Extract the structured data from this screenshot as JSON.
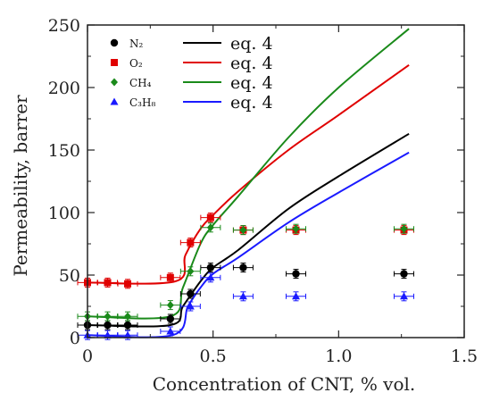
{
  "chart_data": {
    "type": "scatter",
    "xlabel": "Concentration of CNT, % vol.",
    "ylabel": "Permeability, barrer",
    "xlim": [
      0,
      1.5
    ],
    "ylim": [
      0,
      250
    ],
    "xticks": [
      "0",
      "0.5",
      "1.0",
      "1.5"
    ],
    "yticks": [
      "0",
      "50",
      "100",
      "150",
      "200",
      "250"
    ],
    "grid": false,
    "legend_position": "top-left",
    "model_label": "eq. 4",
    "series": [
      {
        "name": "N₂",
        "color": "#000000",
        "marker": "circle",
        "points": [
          {
            "x": 0,
            "y": 10
          },
          {
            "x": 0.08,
            "y": 10
          },
          {
            "x": 0.16,
            "y": 10
          },
          {
            "x": 0.33,
            "y": 15
          },
          {
            "x": 0.41,
            "y": 35
          },
          {
            "x": 0.49,
            "y": 56
          },
          {
            "x": 0.62,
            "y": 56
          },
          {
            "x": 0.83,
            "y": 51
          },
          {
            "x": 1.26,
            "y": 51
          }
        ],
        "model": [
          {
            "x": 0,
            "y": 10
          },
          {
            "x": 0.33,
            "y": 10
          },
          {
            "x": 0.38,
            "y": 25
          },
          {
            "x": 0.45,
            "y": 45
          },
          {
            "x": 0.5,
            "y": 56
          },
          {
            "x": 0.6,
            "y": 70
          },
          {
            "x": 0.8,
            "y": 103
          },
          {
            "x": 1.0,
            "y": 129
          },
          {
            "x": 1.28,
            "y": 163
          }
        ]
      },
      {
        "name": "O₂",
        "color": "#e00000",
        "marker": "square",
        "points": [
          {
            "x": 0,
            "y": 44
          },
          {
            "x": 0.08,
            "y": 44
          },
          {
            "x": 0.16,
            "y": 43
          },
          {
            "x": 0.33,
            "y": 48
          },
          {
            "x": 0.41,
            "y": 76
          },
          {
            "x": 0.49,
            "y": 96
          },
          {
            "x": 0.62,
            "y": 86
          },
          {
            "x": 0.83,
            "y": 86
          },
          {
            "x": 1.26,
            "y": 86
          }
        ],
        "model": [
          {
            "x": 0,
            "y": 44
          },
          {
            "x": 0.35,
            "y": 45
          },
          {
            "x": 0.39,
            "y": 66
          },
          {
            "x": 0.45,
            "y": 87
          },
          {
            "x": 0.5,
            "y": 98
          },
          {
            "x": 0.6,
            "y": 117
          },
          {
            "x": 0.8,
            "y": 150
          },
          {
            "x": 1.0,
            "y": 178
          },
          {
            "x": 1.28,
            "y": 218
          }
        ]
      },
      {
        "name": "CH₄",
        "color": "#1a8a1a",
        "marker": "diamond",
        "points": [
          {
            "x": 0,
            "y": 17
          },
          {
            "x": 0.08,
            "y": 17
          },
          {
            "x": 0.16,
            "y": 17
          },
          {
            "x": 0.33,
            "y": 26
          },
          {
            "x": 0.41,
            "y": 53
          },
          {
            "x": 0.49,
            "y": 88
          },
          {
            "x": 0.62,
            "y": 86
          },
          {
            "x": 0.83,
            "y": 87
          },
          {
            "x": 1.26,
            "y": 87
          }
        ],
        "model": [
          {
            "x": 0,
            "y": 17
          },
          {
            "x": 0.33,
            "y": 17
          },
          {
            "x": 0.38,
            "y": 40
          },
          {
            "x": 0.45,
            "y": 75
          },
          {
            "x": 0.5,
            "y": 90
          },
          {
            "x": 0.6,
            "y": 113
          },
          {
            "x": 0.8,
            "y": 160
          },
          {
            "x": 1.0,
            "y": 200
          },
          {
            "x": 1.28,
            "y": 247
          }
        ]
      },
      {
        "name": "C₃H₈",
        "color": "#1a1aff",
        "marker": "triangle",
        "points": [
          {
            "x": 0,
            "y": 2
          },
          {
            "x": 0.08,
            "y": 2
          },
          {
            "x": 0.16,
            "y": 2
          },
          {
            "x": 0.33,
            "y": 5
          },
          {
            "x": 0.41,
            "y": 25
          },
          {
            "x": 0.49,
            "y": 48
          },
          {
            "x": 0.62,
            "y": 33
          },
          {
            "x": 0.83,
            "y": 33
          },
          {
            "x": 1.26,
            "y": 33
          }
        ],
        "model": [
          {
            "x": 0,
            "y": 2
          },
          {
            "x": 0.34,
            "y": 2
          },
          {
            "x": 0.4,
            "y": 25
          },
          {
            "x": 0.45,
            "y": 40
          },
          {
            "x": 0.5,
            "y": 51
          },
          {
            "x": 0.6,
            "y": 64
          },
          {
            "x": 0.8,
            "y": 92
          },
          {
            "x": 1.0,
            "y": 116
          },
          {
            "x": 1.28,
            "y": 148
          }
        ]
      }
    ]
  }
}
